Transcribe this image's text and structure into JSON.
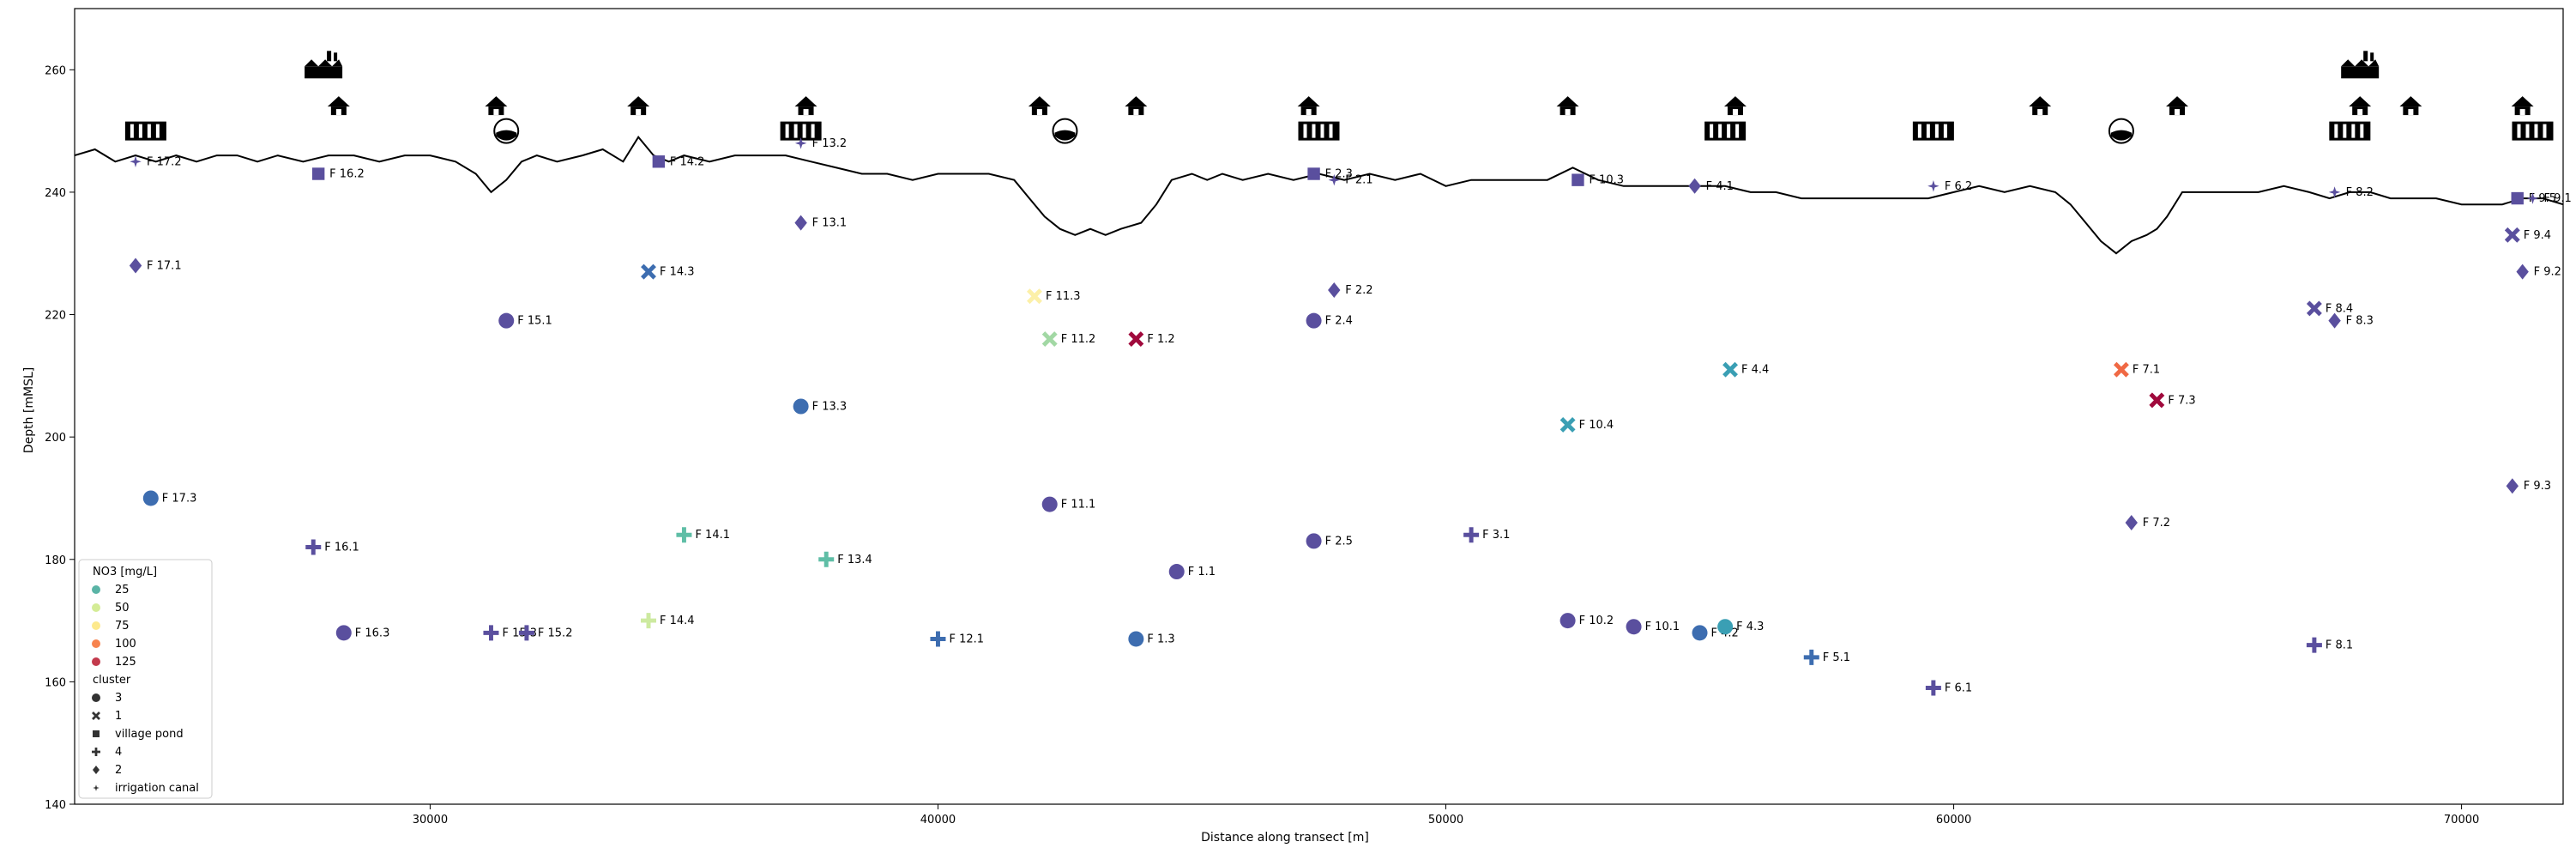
{
  "chart_data": {
    "type": "scatter",
    "title": "",
    "xlabel": "Distance along transect [m]",
    "ylabel": "Depth [mMSL]",
    "xlim": [
      23000,
      72000
    ],
    "ylim": [
      140,
      270
    ],
    "xticks": [
      30000,
      40000,
      50000,
      60000,
      70000
    ],
    "yticks": [
      140,
      160,
      180,
      200,
      220,
      240,
      260
    ],
    "grid": false,
    "legend_placement": "lower-left",
    "colors": {
      "c25": "#5ab4a6",
      "c50": "#d4ec96",
      "c75": "#fde98c",
      "c100": "#f7834e",
      "c125": "#c33a4c",
      "purple": "#5a4f9e",
      "blue": "#3d6db0",
      "cyan": "#3a9fb4",
      "teal": "#5fbea6",
      "green": "#a2d8a4",
      "lime": "#cdeaa0",
      "yellow": "#fcf0a8",
      "orange": "#f06944",
      "red": "#a0093c"
    },
    "legend": {
      "hue_title": "NO3 [mg/L]",
      "hue_items": [
        {
          "label": "25",
          "color": "c25"
        },
        {
          "label": "50",
          "color": "c50"
        },
        {
          "label": "75",
          "color": "c75"
        },
        {
          "label": "100",
          "color": "c100"
        },
        {
          "label": "125",
          "color": "c125"
        }
      ],
      "style_title": "cluster",
      "style_items": [
        {
          "label": "3",
          "marker": "circle"
        },
        {
          "label": "1",
          "marker": "x"
        },
        {
          "label": "village pond",
          "marker": "square"
        },
        {
          "label": "4",
          "marker": "plus"
        },
        {
          "label": "2",
          "marker": "diamond"
        },
        {
          "label": "irrigation canal",
          "marker": "star"
        }
      ]
    },
    "terrain": {
      "x": [
        23000,
        23400,
        23800,
        24200,
        24600,
        25000,
        25400,
        25800,
        26200,
        26600,
        27000,
        27500,
        28000,
        28500,
        29000,
        29500,
        30000,
        30500,
        30900,
        31200,
        31500,
        31800,
        32100,
        32500,
        33000,
        33400,
        33800,
        34100,
        34400,
        34700,
        35000,
        35500,
        36000,
        36500,
        37000,
        37500,
        38000,
        38500,
        39000,
        39500,
        40000,
        40500,
        41000,
        41500,
        41800,
        42100,
        42400,
        42700,
        43000,
        43300,
        43600,
        44000,
        44300,
        44600,
        45000,
        45300,
        45600,
        46000,
        46500,
        47000,
        47500,
        48000,
        48500,
        49000,
        49500,
        50000,
        50500,
        51000,
        51500,
        52000,
        52500,
        53000,
        53500,
        54000,
        54500,
        55000,
        55500,
        56000,
        56500,
        57000,
        57500,
        58000,
        58500,
        59000,
        59500,
        60000,
        60500,
        61000,
        61500,
        62000,
        62300,
        62600,
        62900,
        63200,
        63500,
        63800,
        64000,
        64200,
        64500,
        64800,
        65200,
        65600,
        66000,
        66500,
        67000,
        67400,
        67800,
        68200,
        68600,
        69000,
        69500,
        70000,
        70400,
        70800,
        71200,
        71600,
        72000
      ],
      "y": [
        246,
        247,
        245,
        246,
        245,
        246,
        245,
        246,
        246,
        245,
        246,
        245,
        246,
        246,
        245,
        246,
        246,
        245,
        243,
        240,
        242,
        245,
        246,
        245,
        246,
        247,
        245,
        249,
        246,
        245,
        246,
        245,
        246,
        246,
        246,
        245,
        244,
        243,
        243,
        242,
        243,
        243,
        243,
        242,
        239,
        236,
        234,
        233,
        234,
        233,
        234,
        235,
        238,
        242,
        243,
        242,
        243,
        242,
        243,
        242,
        243,
        242,
        243,
        242,
        243,
        241,
        242,
        242,
        242,
        242,
        244,
        242,
        241,
        241,
        241,
        241,
        241,
        240,
        240,
        239,
        239,
        239,
        239,
        239,
        239,
        240,
        241,
        240,
        241,
        240,
        238,
        235,
        232,
        230,
        232,
        233,
        234,
        236,
        240,
        240,
        240,
        240,
        240,
        241,
        240,
        239,
        240,
        240,
        239,
        239,
        239,
        238,
        238,
        238,
        239,
        239,
        238
      ]
    },
    "icons": [
      {
        "type": "pond",
        "x": 24400,
        "y": 250
      },
      {
        "type": "factory",
        "x": 27900,
        "y": 260
      },
      {
        "type": "house",
        "x": 28200,
        "y": 254
      },
      {
        "type": "house",
        "x": 31300,
        "y": 254
      },
      {
        "type": "drop",
        "x": 31500,
        "y": 250
      },
      {
        "type": "house",
        "x": 34100,
        "y": 254
      },
      {
        "type": "house",
        "x": 37400,
        "y": 254
      },
      {
        "type": "pond",
        "x": 37300,
        "y": 250
      },
      {
        "type": "house",
        "x": 42000,
        "y": 254
      },
      {
        "type": "drop",
        "x": 42500,
        "y": 250
      },
      {
        "type": "house",
        "x": 43900,
        "y": 254
      },
      {
        "type": "house",
        "x": 47300,
        "y": 254
      },
      {
        "type": "pond",
        "x": 47500,
        "y": 250
      },
      {
        "type": "house",
        "x": 52400,
        "y": 254
      },
      {
        "type": "pond",
        "x": 55500,
        "y": 250
      },
      {
        "type": "house",
        "x": 55700,
        "y": 254
      },
      {
        "type": "pond",
        "x": 59600,
        "y": 250
      },
      {
        "type": "house",
        "x": 61700,
        "y": 254
      },
      {
        "type": "drop",
        "x": 63300,
        "y": 250
      },
      {
        "type": "house",
        "x": 64400,
        "y": 254
      },
      {
        "type": "factory",
        "x": 68000,
        "y": 260
      },
      {
        "type": "house",
        "x": 68000,
        "y": 254
      },
      {
        "type": "pond",
        "x": 67800,
        "y": 250
      },
      {
        "type": "house",
        "x": 69000,
        "y": 254
      },
      {
        "type": "house",
        "x": 71200,
        "y": 254
      },
      {
        "type": "pond",
        "x": 71400,
        "y": 250
      }
    ],
    "points": [
      {
        "label": "F 17.2",
        "x": 24200,
        "y": 245,
        "marker": "star",
        "color": "purple"
      },
      {
        "label": "F 17.1",
        "x": 24200,
        "y": 228,
        "marker": "diamond",
        "color": "purple"
      },
      {
        "label": "F 17.3",
        "x": 24500,
        "y": 190,
        "marker": "circle",
        "color": "blue"
      },
      {
        "label": "F 16.2",
        "x": 27800,
        "y": 243,
        "marker": "square",
        "color": "purple"
      },
      {
        "label": "F 16.1",
        "x": 27700,
        "y": 182,
        "marker": "plus",
        "color": "purple"
      },
      {
        "label": "F 16.3",
        "x": 28300,
        "y": 168,
        "marker": "circle",
        "color": "purple"
      },
      {
        "label": "F 15.1",
        "x": 31500,
        "y": 219,
        "marker": "circle",
        "color": "purple"
      },
      {
        "label": "F 15.3",
        "x": 31200,
        "y": 168,
        "marker": "plus",
        "color": "purple"
      },
      {
        "label": "F 15.2",
        "x": 31900,
        "y": 168,
        "marker": "plus",
        "color": "purple"
      },
      {
        "label": "F 14.2",
        "x": 34500,
        "y": 245,
        "marker": "square",
        "color": "purple"
      },
      {
        "label": "F 14.3",
        "x": 34300,
        "y": 227,
        "marker": "x",
        "color": "blue"
      },
      {
        "label": "F 14.1",
        "x": 35000,
        "y": 184,
        "marker": "plus",
        "color": "teal"
      },
      {
        "label": "F 14.4",
        "x": 34300,
        "y": 170,
        "marker": "plus",
        "color": "lime"
      },
      {
        "label": "F 13.2",
        "x": 37300,
        "y": 248,
        "marker": "star",
        "color": "purple"
      },
      {
        "label": "F 13.1",
        "x": 37300,
        "y": 235,
        "marker": "diamond",
        "color": "purple"
      },
      {
        "label": "F 13.3",
        "x": 37300,
        "y": 205,
        "marker": "circle",
        "color": "blue"
      },
      {
        "label": "F 13.4",
        "x": 37800,
        "y": 180,
        "marker": "plus",
        "color": "teal"
      },
      {
        "label": "F 12.1",
        "x": 40000,
        "y": 167,
        "marker": "plus",
        "color": "blue"
      },
      {
        "label": "F 11.3",
        "x": 41900,
        "y": 223,
        "marker": "x",
        "color": "yellow"
      },
      {
        "label": "F 11.2",
        "x": 42200,
        "y": 216,
        "marker": "x",
        "color": "green"
      },
      {
        "label": "F 11.1",
        "x": 42200,
        "y": 189,
        "marker": "circle",
        "color": "purple"
      },
      {
        "label": "F 1.2",
        "x": 43900,
        "y": 216,
        "marker": "x",
        "color": "red"
      },
      {
        "label": "F 1.1",
        "x": 44700,
        "y": 178,
        "marker": "circle",
        "color": "purple"
      },
      {
        "label": "F 1.3",
        "x": 43900,
        "y": 167,
        "marker": "circle",
        "color": "blue"
      },
      {
        "label": "F 2.3",
        "x": 47400,
        "y": 243,
        "marker": "square",
        "color": "purple"
      },
      {
        "label": "F 2.1",
        "x": 47800,
        "y": 242,
        "marker": "star",
        "color": "purple"
      },
      {
        "label": "F 2.2",
        "x": 47800,
        "y": 224,
        "marker": "diamond",
        "color": "purple"
      },
      {
        "label": "F 2.4",
        "x": 47400,
        "y": 219,
        "marker": "circle",
        "color": "purple"
      },
      {
        "label": "F 2.5",
        "x": 47400,
        "y": 183,
        "marker": "circle",
        "color": "purple"
      },
      {
        "label": "F 3.1",
        "x": 50500,
        "y": 184,
        "marker": "plus",
        "color": "purple"
      },
      {
        "label": "F 10.3",
        "x": 52600,
        "y": 242,
        "marker": "square",
        "color": "purple"
      },
      {
        "label": "F 10.4",
        "x": 52400,
        "y": 202,
        "marker": "x",
        "color": "cyan"
      },
      {
        "label": "F 10.2",
        "x": 52400,
        "y": 170,
        "marker": "circle",
        "color": "purple"
      },
      {
        "label": "F 10.1",
        "x": 53700,
        "y": 169,
        "marker": "circle",
        "color": "purple"
      },
      {
        "label": "F 4.1",
        "x": 54900,
        "y": 241,
        "marker": "diamond",
        "color": "purple"
      },
      {
        "label": "F 4.4",
        "x": 55600,
        "y": 211,
        "marker": "x",
        "color": "cyan"
      },
      {
        "label": "F 4.2",
        "x": 55000,
        "y": 168,
        "marker": "circle",
        "color": "blue"
      },
      {
        "label": "F 4.3",
        "x": 55500,
        "y": 169,
        "marker": "circle",
        "color": "cyan"
      },
      {
        "label": "F 5.1",
        "x": 57200,
        "y": 164,
        "marker": "plus",
        "color": "blue"
      },
      {
        "label": "F 6.2",
        "x": 59600,
        "y": 241,
        "marker": "star",
        "color": "purple"
      },
      {
        "label": "F 6.1",
        "x": 59600,
        "y": 159,
        "marker": "plus",
        "color": "purple"
      },
      {
        "label": "F 7.1",
        "x": 63300,
        "y": 211,
        "marker": "x",
        "color": "orange"
      },
      {
        "label": "F 7.3",
        "x": 64000,
        "y": 206,
        "marker": "x",
        "color": "red"
      },
      {
        "label": "F 7.2",
        "x": 63500,
        "y": 186,
        "marker": "diamond",
        "color": "purple"
      },
      {
        "label": "F 8.2",
        "x": 67500,
        "y": 240,
        "marker": "star",
        "color": "purple"
      },
      {
        "label": "F 8.4",
        "x": 67100,
        "y": 221,
        "marker": "x",
        "color": "purple"
      },
      {
        "label": "F 8.3",
        "x": 67500,
        "y": 219,
        "marker": "diamond",
        "color": "purple"
      },
      {
        "label": "F 8.1",
        "x": 67100,
        "y": 166,
        "marker": "plus",
        "color": "purple"
      },
      {
        "label": "F 9.5",
        "x": 71100,
        "y": 239,
        "marker": "square",
        "color": "purple"
      },
      {
        "label": "F 9.1",
        "x": 71400,
        "y": 239,
        "marker": "star",
        "color": "purple"
      },
      {
        "label": "F 9.4",
        "x": 71000,
        "y": 233,
        "marker": "x",
        "color": "purple"
      },
      {
        "label": "F 9.2",
        "x": 71200,
        "y": 227,
        "marker": "diamond",
        "color": "purple"
      },
      {
        "label": "F 9.3",
        "x": 71000,
        "y": 192,
        "marker": "diamond",
        "color": "purple"
      }
    ]
  }
}
